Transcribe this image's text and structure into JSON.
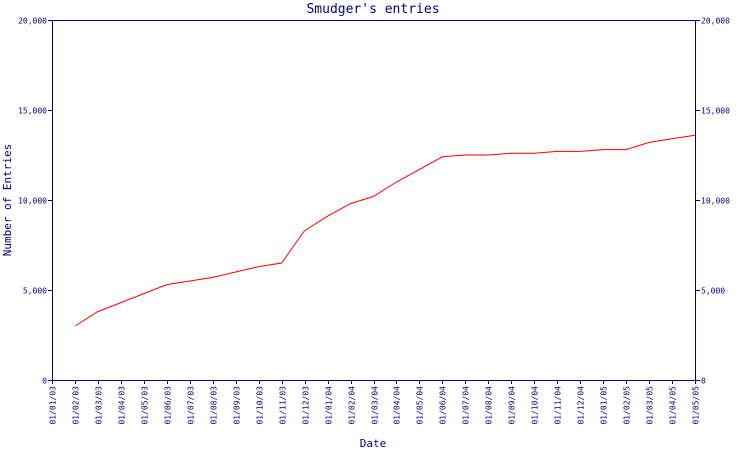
{
  "chart_data": {
    "type": "line",
    "title": "Smudger's entries",
    "xlabel": "Date",
    "ylabel": "Number of Entries",
    "ylim": [
      0,
      20000
    ],
    "yticks": [
      0,
      5000,
      10000,
      15000,
      20000
    ],
    "ytick_labels": [
      "0",
      "5,000",
      "10,000",
      "15,000",
      "20,000"
    ],
    "grid": false,
    "legend": "none",
    "colors": {
      "axis": "#000080",
      "series": "#ff0000",
      "text": "#000080"
    },
    "categories": [
      "01/01/03",
      "01/02/03",
      "01/03/03",
      "01/04/03",
      "01/05/03",
      "01/06/03",
      "01/07/03",
      "01/08/03",
      "01/09/03",
      "01/10/03",
      "01/11/03",
      "01/12/03",
      "01/01/04",
      "01/02/04",
      "01/03/04",
      "01/04/04",
      "01/05/04",
      "01/06/04",
      "01/07/04",
      "01/08/04",
      "01/09/04",
      "01/10/04",
      "01/11/04",
      "01/12/04",
      "01/01/05",
      "01/02/05",
      "01/03/05",
      "01/04/05",
      "01/05/05"
    ],
    "series": [
      {
        "values": [
          null,
          3000,
          3800,
          4300,
          4800,
          5300,
          5500,
          5700,
          6000,
          6300,
          6500,
          8300,
          9100,
          9800,
          10200,
          11000,
          11700,
          12400,
          12500,
          12500,
          12600,
          12600,
          12700,
          12700,
          12800,
          12800,
          13200,
          13400,
          13600
        ]
      }
    ]
  }
}
